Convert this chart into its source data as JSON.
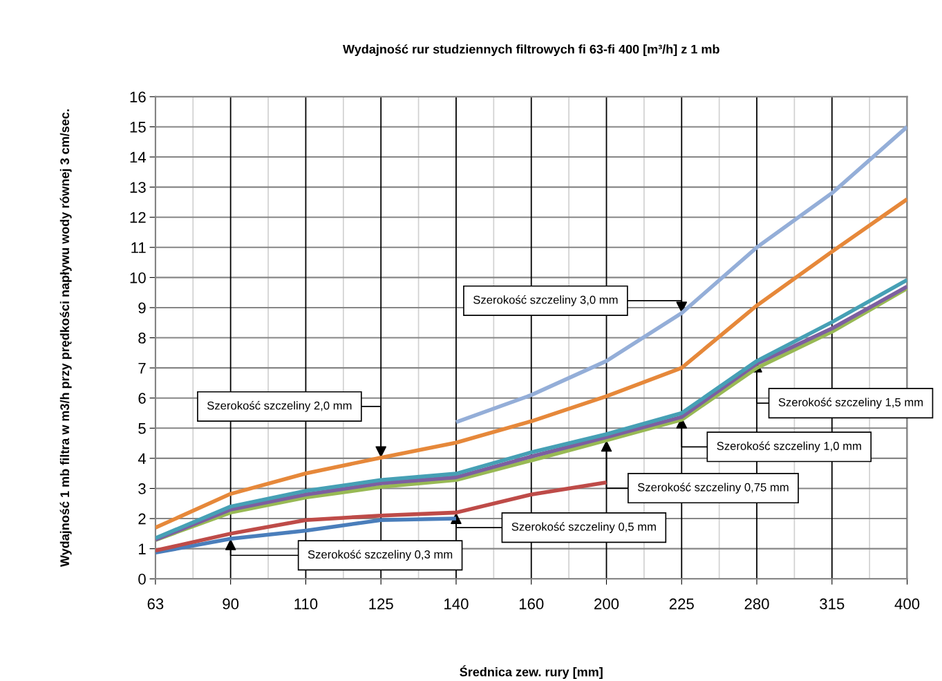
{
  "chart_data": {
    "type": "line",
    "title": "Wydajność rur studziennych filtrowych fi 63-fi 400 [m³/h] z 1 mb",
    "xlabel": "Średnica zew. rury [mm]",
    "ylabel": "Wydajność 1 mb filtra w m3/h przy prędkości napływu wody równej 3 cm/sec.",
    "categories": [
      "63",
      "90",
      "110",
      "125",
      "140",
      "160",
      "200",
      "225",
      "280",
      "315",
      "400"
    ],
    "ylim": [
      0,
      16
    ],
    "yticks": [
      0,
      1,
      2,
      3,
      4,
      5,
      6,
      7,
      8,
      9,
      10,
      11,
      12,
      13,
      14,
      15,
      16
    ],
    "grid": true,
    "marker": "none",
    "line_style": "solid",
    "series": [
      {
        "color": "#4a7ebb",
        "values": [
          0.87,
          1.33,
          1.6,
          1.95,
          2.0,
          null,
          null,
          null,
          null,
          null,
          null
        ]
      },
      {
        "color": "#be4b48",
        "values": [
          0.94,
          1.5,
          1.95,
          2.1,
          2.2,
          2.8,
          3.2,
          null,
          null,
          null,
          null
        ]
      },
      {
        "color": "#98b954",
        "values": [
          1.29,
          2.2,
          2.7,
          3.05,
          3.28,
          3.93,
          4.6,
          5.28,
          7.0,
          8.2,
          9.64
        ]
      },
      {
        "color": "#7d5fa0",
        "values": [
          1.3,
          2.3,
          2.8,
          3.17,
          3.37,
          4.06,
          4.7,
          5.37,
          7.14,
          8.31,
          9.7
        ]
      },
      {
        "color": "#46a0b5",
        "values": [
          1.35,
          2.4,
          2.92,
          3.28,
          3.49,
          4.2,
          4.8,
          5.5,
          7.23,
          8.52,
          9.92
        ]
      },
      {
        "color": "#e6883a",
        "values": [
          1.7,
          2.82,
          3.5,
          4.02,
          4.52,
          5.23,
          6.06,
          7.0,
          9.07,
          10.86,
          12.6
        ]
      },
      {
        "color": "#94aed8",
        "values": [
          null,
          null,
          null,
          null,
          5.2,
          6.1,
          7.23,
          8.82,
          11.0,
          12.8,
          15.0
        ]
      }
    ],
    "annotations": [
      {
        "text": "Szerokość szczeliny 0,3 mm",
        "x": "90",
        "y": 1.33
      },
      {
        "text": "Szerokość szczeliny 0,5 mm",
        "x": "140",
        "y": 2.2
      },
      {
        "text": "Szerokość szczeliny 0,75 mm",
        "x": "200",
        "y": 4.6
      },
      {
        "text": "Szerokość szczeliny 1,0 mm",
        "x": "225",
        "y": 5.37
      },
      {
        "text": "Szerokość szczeliny 1,5 mm",
        "x": "280",
        "y": 7.23
      },
      {
        "text": "Szerokość szczeliny 2,0 mm",
        "x": "125",
        "y": 4.02
      },
      {
        "text": "Szerokość szczeliny 3,0 mm",
        "x": "225",
        "y": 8.82
      }
    ]
  }
}
